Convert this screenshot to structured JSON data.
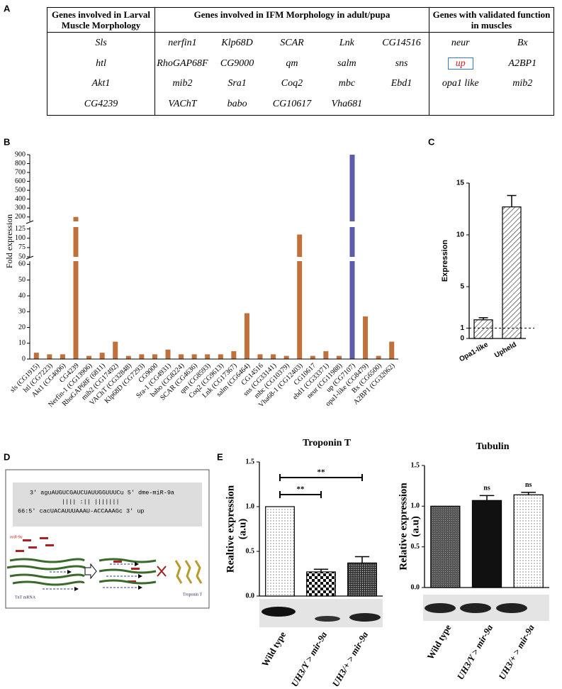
{
  "panel_labels": [
    "A",
    "B",
    "C",
    "D",
    "E"
  ],
  "table": {
    "headers": [
      "Genes involved in Larval Muscle Morphology",
      "Genes involved in IFM Morphology in adult/pupa",
      "Genes with validated function in muscles"
    ],
    "rows": [
      {
        "larval": "Sls",
        "ifm": [
          "nerfin1",
          "Klp68D",
          "SCAR",
          "Lnk",
          "CG14516"
        ],
        "validated": [
          "neur",
          "Bx"
        ]
      },
      {
        "larval": "htl",
        "ifm": [
          "RhoGAP68F",
          "CG9000",
          "qm",
          "salm",
          "sns"
        ],
        "validated": [
          "up",
          "A2BP1"
        ]
      },
      {
        "larval": "Akt1",
        "ifm": [
          "mib2",
          "Sra1",
          "Coq2",
          "mbc",
          "Ebd1"
        ],
        "validated": [
          "opa1 like",
          "mib2"
        ]
      },
      {
        "larval": "CG4239",
        "ifm": [
          "VAChT",
          "babo",
          "CG10617",
          "Vha681"
        ],
        "validated": []
      }
    ]
  },
  "chart_data": [
    {
      "type": "broken-bar",
      "y_label": "Fold expression",
      "categories": [
        "sls (CG1915)",
        "htl (CG7223)",
        "Akt1 (CG4006)",
        "CG4239",
        "Nerfin-1 (CG13906)",
        "RhoGAP68F (6811)",
        "mib2 (CG17492)",
        "VAChT (CG32848)",
        "Klp68D (CG7293)",
        "CG9000",
        "Sra-1 (CG4931)",
        "babo (CG8224)",
        "SCAR (CG4636)",
        "qm (CG8593)",
        "Coq2 (CG9613)",
        "Lnk (CG17367)",
        "salm (CG6464)",
        "CG14516",
        "sns (CG33141)",
        "mbc (CG10379)",
        "Vha68-1 (CG12403)",
        "CG10617",
        "ebd1 (CG33371)",
        "neur (CG11988)",
        "up (CG7107)",
        "opa1-like (CG8479)",
        "Bx (CG6500)",
        "A2BP1 (CG32062)"
      ],
      "values": [
        4,
        3,
        3,
        200,
        2,
        4,
        11,
        2,
        3,
        3,
        6,
        3,
        3,
        3,
        3,
        5,
        29,
        3,
        3,
        2,
        110,
        2,
        5,
        2,
        900,
        27,
        2,
        11
      ],
      "colors": [
        "#c0703a",
        "#c0703a",
        "#c0703a",
        "#c0703a",
        "#c0703a",
        "#c0703a",
        "#c0703a",
        "#c0703a",
        "#c0703a",
        "#c0703a",
        "#c0703a",
        "#c0703a",
        "#c0703a",
        "#c0703a",
        "#c0703a",
        "#c0703a",
        "#c0703a",
        "#c0703a",
        "#c0703a",
        "#c0703a",
        "#c0703a",
        "#c0703a",
        "#c0703a",
        "#c0703a",
        "#5b5ea6",
        "#c0703a",
        "#c0703a",
        "#c0703a"
      ],
      "segments": [
        {
          "ylim": [
            0,
            62
          ],
          "yticks": [
            0,
            10,
            20,
            30,
            40,
            50,
            60
          ]
        },
        {
          "ylim": [
            50,
            130
          ],
          "yticks": [
            50,
            75,
            100,
            125
          ]
        },
        {
          "ylim": [
            150,
            900
          ],
          "yticks": [
            200,
            300,
            400,
            500,
            600,
            700,
            800,
            900
          ]
        }
      ]
    },
    {
      "type": "bar",
      "y_label": "Expression",
      "categories": [
        "Opa1-like",
        "Upheld"
      ],
      "values": [
        1.8,
        12.7
      ],
      "errors": [
        0.2,
        1.1
      ],
      "ylim": [
        0,
        15
      ],
      "yticks": [
        0,
        1,
        5,
        10,
        15
      ],
      "reference_line": 1
    },
    {
      "type": "bar",
      "title": "Troponin T",
      "y_label": [
        "Realtive expression",
        "(a.u)"
      ],
      "categories": [
        "Wild type",
        "UH3/Y > mir-9a",
        "UH3/+ > mir-9a"
      ],
      "values": [
        1.0,
        0.27,
        0.37
      ],
      "errors": [
        null,
        0.03,
        0.07
      ],
      "ylim": [
        0,
        1.5
      ],
      "yticks": [
        {
          "value": 0,
          "label": "0.0"
        },
        {
          "value": 0.5,
          "label": "0.5"
        },
        {
          "value": 1,
          "label": "1.0"
        },
        {
          "value": 1.5,
          "label": "1.5"
        }
      ],
      "significance": [
        "**",
        "**"
      ]
    },
    {
      "type": "bar",
      "title": "Tubulin",
      "y_label": [
        "Relative expression",
        "(a.u)"
      ],
      "categories": [
        "Wild type",
        "UH3/Y > mir-9a",
        "UH3/+ > mir-9a"
      ],
      "values": [
        1.0,
        1.07,
        1.14
      ],
      "errors": [
        null,
        0.06,
        0.03
      ],
      "ylim": [
        0,
        1.5
      ],
      "yticks": [
        {
          "value": 0,
          "label": "0.0"
        },
        {
          "value": 0.5,
          "label": "0.5"
        },
        {
          "value": 1,
          "label": "1.0"
        },
        {
          "value": 1.5,
          "label": "1.5"
        }
      ],
      "annotations": [
        null,
        "ns",
        "ns"
      ]
    }
  ],
  "diagram": {
    "alignment": [
      "3' aguAUGUCGAUCUAUUGGUUUCu 5' dme-miR-9a",
      "|||| :|| |||||||",
      "66:5' cacUACAUUUAAAU-ACCAAAGc 3' up"
    ],
    "labels": [
      "miR-9a",
      "TnT mRNA",
      "Troponin T"
    ]
  }
}
